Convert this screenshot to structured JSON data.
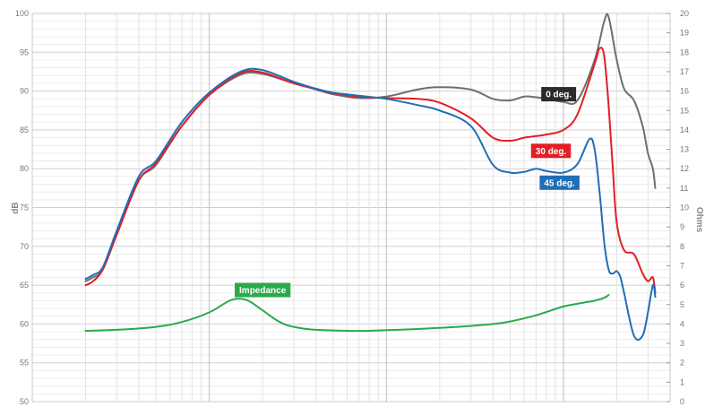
{
  "chart_data": {
    "type": "line",
    "xlabel": "",
    "ylabel": "dB",
    "y2label": "Ohms",
    "ylim": [
      50,
      100
    ],
    "y2lim": [
      0,
      20
    ],
    "yticks": [
      50,
      55,
      60,
      65,
      70,
      75,
      80,
      85,
      90,
      95,
      100
    ],
    "y2ticks": [
      0,
      1,
      2,
      3,
      4,
      5,
      6,
      7,
      8,
      9,
      10,
      11,
      12,
      13,
      14,
      15,
      16,
      17,
      18,
      19,
      20
    ],
    "x_scale": "log",
    "x_range_hz": [
      10,
      40000
    ],
    "grid": true,
    "series": [
      {
        "name": "0 deg.",
        "axis": "left",
        "color": "#6e6e6e",
        "x": [
          20,
          22,
          25,
          30,
          40,
          50,
          70,
          100,
          150,
          200,
          300,
          400,
          500,
          700,
          1000,
          1500,
          2000,
          3000,
          4000,
          5000,
          6000,
          7000,
          8000,
          10000,
          12000,
          15000,
          17000,
          18000,
          20000,
          22000,
          25000,
          28000,
          30000,
          32000,
          33000
        ],
        "y": [
          65.5,
          66,
          67,
          71.5,
          78.5,
          80.5,
          85.5,
          89.5,
          92.1,
          92.2,
          91,
          90.2,
          89.6,
          89.1,
          89.3,
          90.2,
          90.5,
          90.2,
          89,
          88.8,
          89.3,
          89.2,
          89,
          88.6,
          88.8,
          94,
          99,
          99.5,
          94,
          90.3,
          88.8,
          85.5,
          82,
          80,
          77.5
        ]
      },
      {
        "name": "30 deg.",
        "axis": "left",
        "color": "#e31e26",
        "x": [
          20,
          22,
          25,
          30,
          40,
          50,
          70,
          100,
          150,
          200,
          300,
          400,
          500,
          700,
          1000,
          1500,
          2000,
          3000,
          4000,
          5000,
          6000,
          7000,
          8000,
          10000,
          12000,
          15000,
          16000,
          17000,
          18000,
          19000,
          20000,
          22000,
          25000,
          28000,
          30000,
          32000,
          33000
        ],
        "y": [
          65,
          65.5,
          67,
          71.5,
          78.5,
          80.7,
          85.5,
          89.5,
          92.3,
          92.4,
          91,
          90.3,
          89.7,
          89.3,
          89.1,
          89,
          88.5,
          86.5,
          84,
          83.6,
          84,
          84.2,
          84.4,
          85,
          87,
          93.5,
          95.5,
          94.5,
          88,
          80,
          73,
          69.5,
          69,
          66.5,
          65.5,
          66,
          64
        ]
      },
      {
        "name": "45 deg.",
        "axis": "left",
        "color": "#1f6eb7",
        "x": [
          20,
          22,
          25,
          30,
          40,
          50,
          70,
          100,
          150,
          200,
          300,
          400,
          500,
          700,
          1000,
          1500,
          2000,
          3000,
          4000,
          5000,
          6000,
          7000,
          8000,
          10000,
          12000,
          14000,
          15000,
          16000,
          17000,
          18000,
          19000,
          20000,
          21000,
          22000,
          25000,
          28000,
          30000,
          32000,
          33000
        ],
        "y": [
          65.8,
          66.3,
          67.3,
          72,
          79,
          81,
          86,
          89.8,
          92.5,
          92.7,
          91.2,
          90.3,
          89.8,
          89.4,
          89,
          88.2,
          87.5,
          85.5,
          80.5,
          79.5,
          79.6,
          80,
          79.7,
          79.5,
          80.6,
          83.8,
          82.5,
          77,
          70.5,
          67,
          66.5,
          66.8,
          66,
          64,
          58.5,
          58.5,
          61.5,
          65,
          63.5
        ]
      },
      {
        "name": "Impedance",
        "axis": "right",
        "color": "#2aaa4a",
        "x": [
          20,
          30,
          50,
          70,
          100,
          130,
          150,
          170,
          200,
          250,
          300,
          400,
          600,
          800,
          1000,
          1500,
          2000,
          3000,
          4000,
          5000,
          7000,
          10000,
          13000,
          15000,
          17000,
          18000
        ],
        "y": [
          3.65,
          3.7,
          3.85,
          4.1,
          4.6,
          5.2,
          5.3,
          5.15,
          4.7,
          4.1,
          3.85,
          3.7,
          3.65,
          3.65,
          3.68,
          3.74,
          3.8,
          3.9,
          4,
          4.13,
          4.45,
          4.9,
          5.1,
          5.2,
          5.35,
          5.5
        ]
      }
    ]
  }
}
